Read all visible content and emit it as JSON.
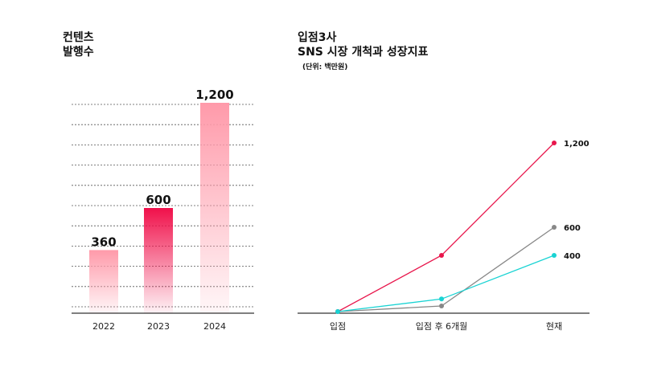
{
  "chart_data": [
    {
      "type": "bar",
      "title_lines": [
        "컨텐츠",
        "발행수"
      ],
      "categories": [
        "2022",
        "2023",
        "2024"
      ],
      "values": [
        360,
        600,
        1200
      ],
      "value_labels": [
        "360",
        "600",
        "1,200"
      ],
      "ylim": [
        0,
        1200
      ],
      "grid": true,
      "colors": {
        "bar": "#ff9aaa",
        "bar_highlight": "#f0104a",
        "highlight_index": 1,
        "grid": "#555555"
      }
    },
    {
      "type": "line",
      "title_lines": [
        "입점3사",
        "SNS 시장 개척과 성장지표"
      ],
      "subtitle": "(단위: 백만원)",
      "categories": [
        "입점",
        "입점 후 6개월",
        "현재"
      ],
      "series": [
        {
          "values": [
            0,
            400,
            1200
          ],
          "end_label": "1,200",
          "color": "#e8154b"
        },
        {
          "values": [
            0,
            40,
            600
          ],
          "end_label": "600",
          "color": "#888888"
        },
        {
          "values": [
            0,
            90,
            400
          ],
          "end_label": "400",
          "color": "#19d3d3"
        }
      ],
      "ylim": [
        0,
        1200
      ],
      "grid": false
    }
  ]
}
